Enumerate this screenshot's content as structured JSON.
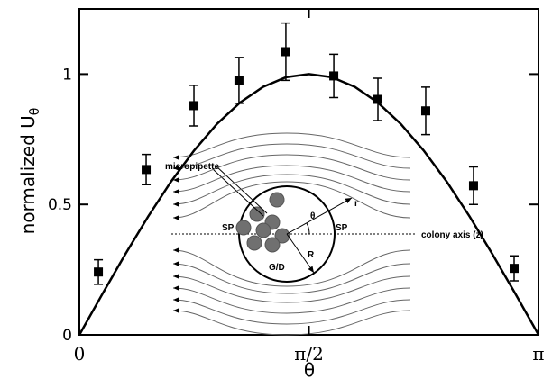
{
  "chart_data": {
    "type": "scatter",
    "xlabel": "θ",
    "ylabel": "normalized U",
    "ylabel_subscript": "θ",
    "xlim": [
      0,
      3.1416
    ],
    "ylim": [
      0,
      1.25
    ],
    "xticks": [
      0,
      {
        "value": 1.5708,
        "label": "π/2"
      },
      {
        "value": 3.1416,
        "label": "π"
      }
    ],
    "yticks": [
      0,
      0.5,
      1
    ],
    "color": "#000000",
    "points": {
      "x": [
        0.13,
        0.457,
        0.784,
        1.092,
        1.413,
        1.741,
        2.043,
        2.37,
        2.697,
        2.975
      ],
      "values": [
        0.241,
        0.634,
        0.879,
        0.976,
        1.086,
        0.993,
        0.903,
        0.859,
        0.572,
        0.255
      ],
      "errors": [
        0.047,
        0.058,
        0.078,
        0.088,
        0.11,
        0.083,
        0.081,
        0.091,
        0.072,
        0.048
      ]
    },
    "curve": {
      "x": [
        0,
        0.157,
        0.314,
        0.471,
        0.628,
        0.785,
        0.942,
        1.1,
        1.257,
        1.414,
        1.571,
        1.728,
        1.885,
        2.042,
        2.199,
        2.356,
        2.513,
        2.67,
        2.827,
        2.985,
        3.142
      ],
      "values": [
        0,
        0.156,
        0.309,
        0.454,
        0.588,
        0.707,
        0.809,
        0.891,
        0.951,
        0.988,
        1,
        0.988,
        0.951,
        0.891,
        0.809,
        0.707,
        0.588,
        0.454,
        0.309,
        0.156,
        0
      ]
    },
    "annotations": [
      "micropipette",
      "r",
      "θ",
      "SP",
      "SP",
      "colony axis (z)",
      "R",
      "G/D"
    ]
  }
}
